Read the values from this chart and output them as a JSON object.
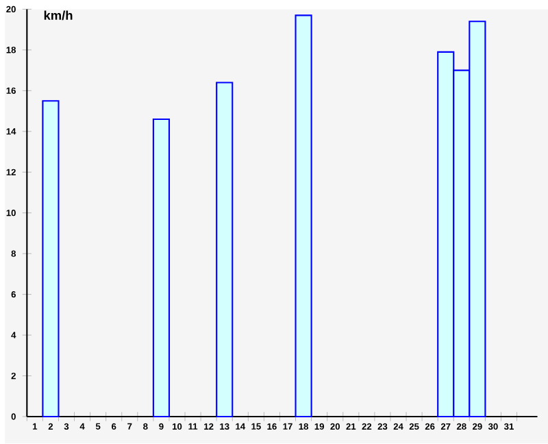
{
  "chart_data": {
    "type": "bar",
    "ylabel": "km/h",
    "categories": [
      "1",
      "2",
      "3",
      "4",
      "5",
      "6",
      "7",
      "8",
      "9",
      "10",
      "11",
      "12",
      "13",
      "14",
      "15",
      "16",
      "17",
      "18",
      "19",
      "20",
      "21",
      "22",
      "23",
      "24",
      "25",
      "26",
      "27",
      "28",
      "29",
      "30",
      "31"
    ],
    "values": [
      null,
      15.5,
      null,
      null,
      null,
      null,
      null,
      null,
      14.6,
      null,
      null,
      null,
      16.4,
      null,
      null,
      null,
      null,
      19.7,
      null,
      null,
      null,
      null,
      null,
      null,
      null,
      null,
      17.9,
      17.0,
      19.4,
      null,
      null
    ],
    "color": "#d4ffff",
    "ylim": [
      0,
      20
    ],
    "yticks": [
      0,
      2,
      4,
      6,
      8,
      10,
      12,
      14,
      16,
      18,
      20
    ]
  }
}
